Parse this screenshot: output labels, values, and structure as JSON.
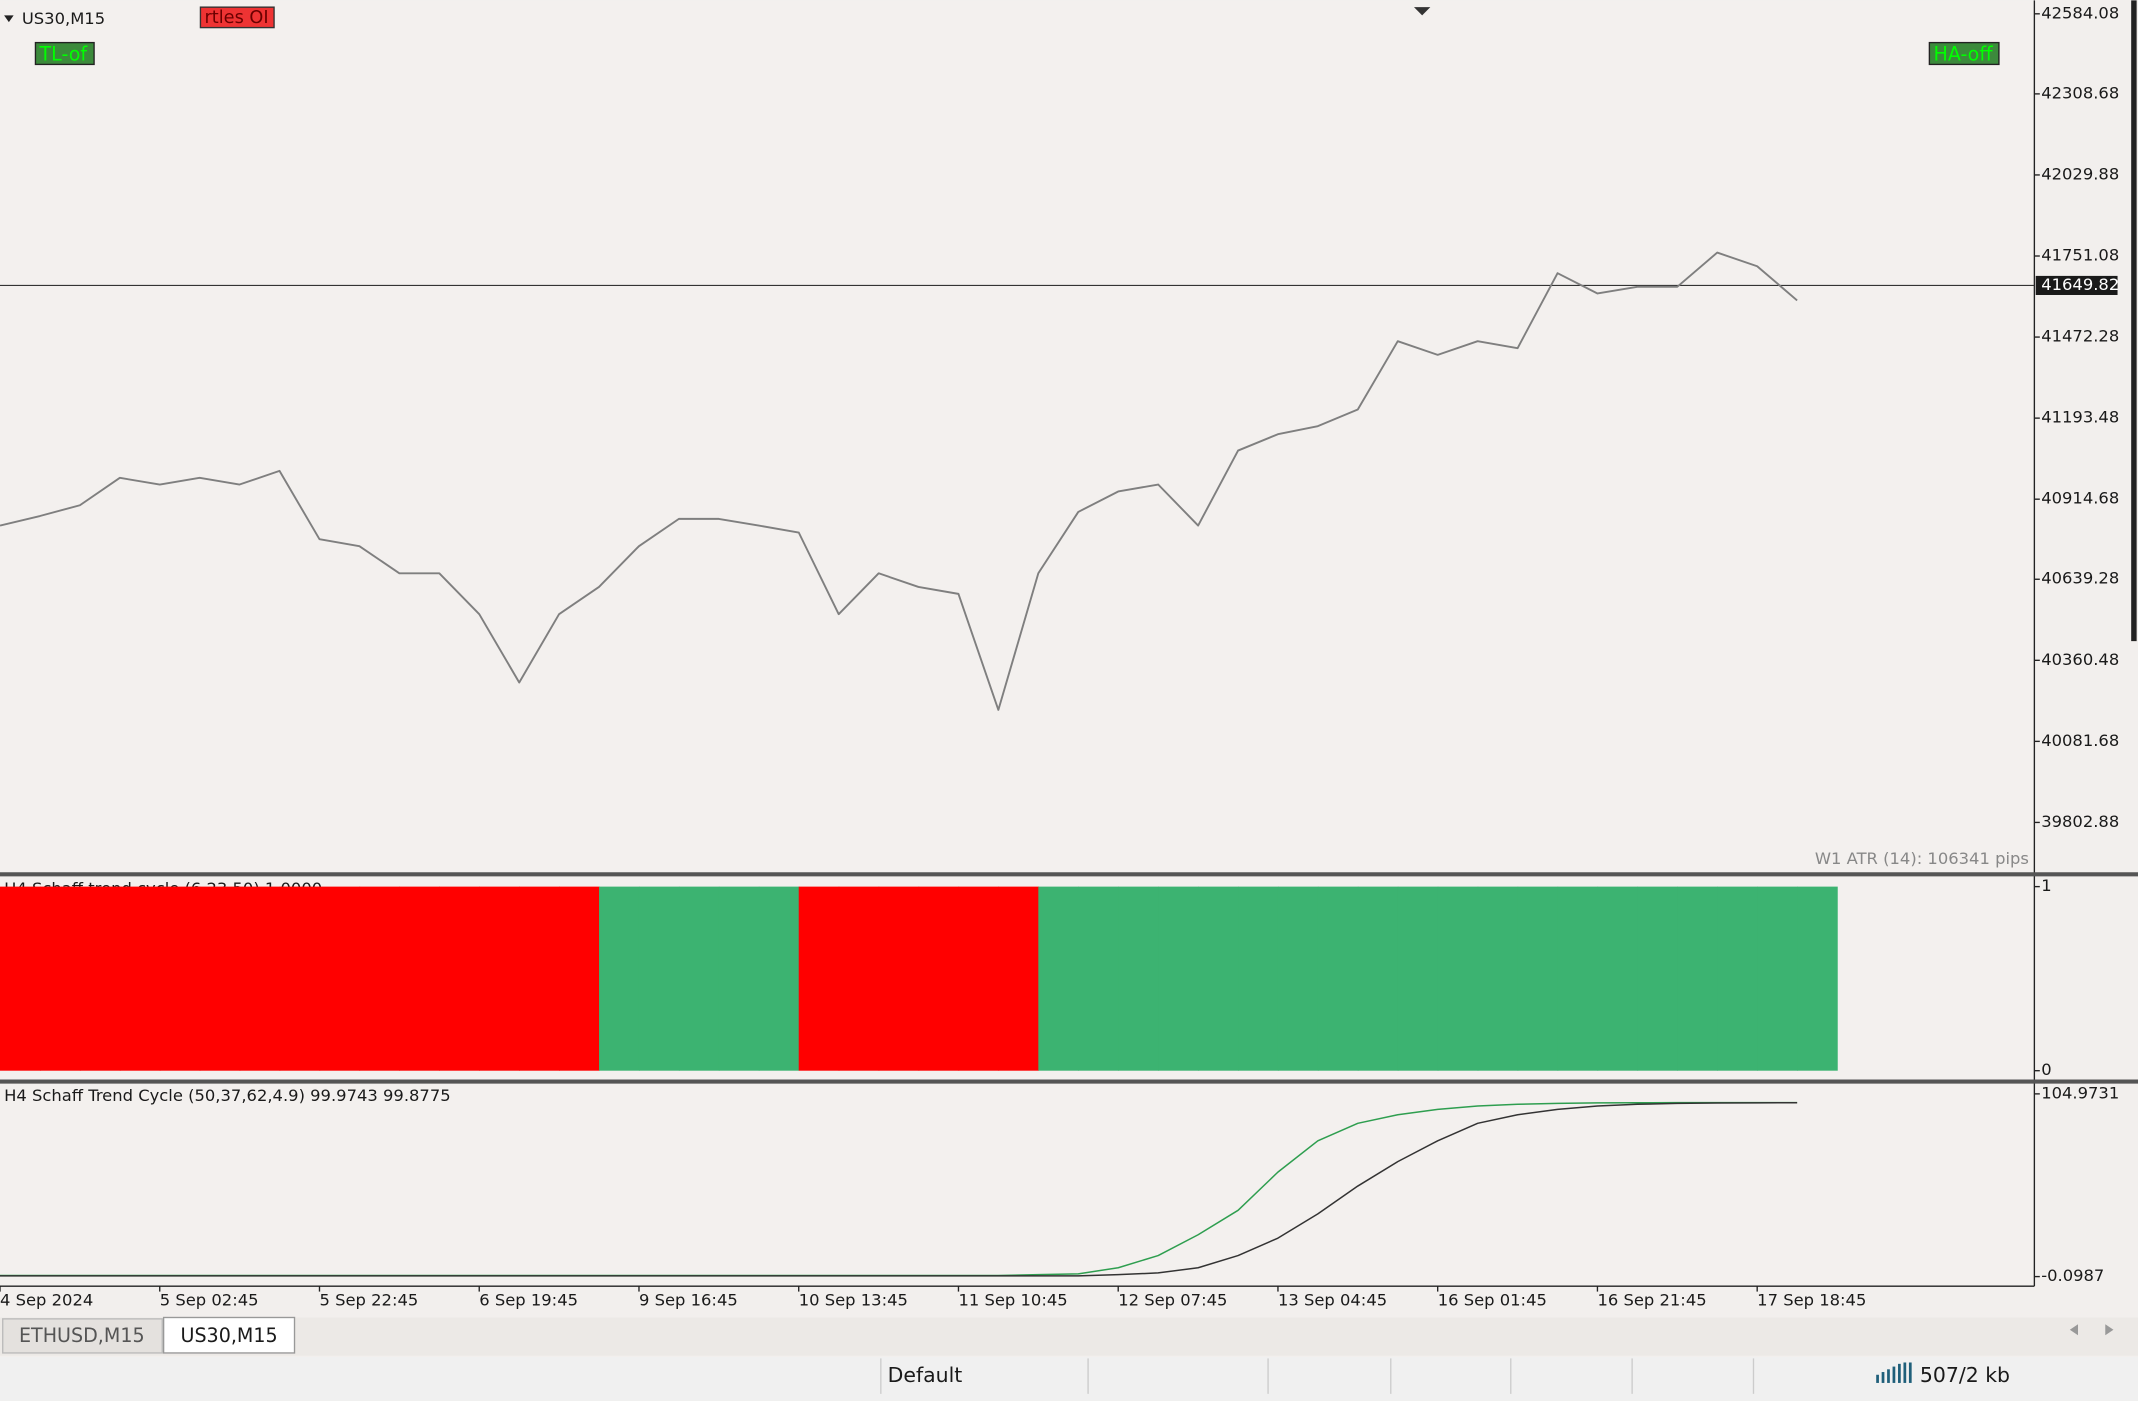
{
  "window": {
    "buttons": [
      "rtles OI",
      "TL-of",
      "HA-off"
    ],
    "tabs": [
      "ETHUSD,M15",
      "US30,M15"
    ],
    "status": [
      "Default",
      "507/2 kb"
    ]
  },
  "chart_data": [
    {
      "type": "line",
      "title": "US30,M15",
      "annotation": "W1 ATR (14): 106341 pips",
      "current_price": 41649.82,
      "categories": [
        "4 Sep 2024",
        null,
        null,
        null,
        "5 Sep 02:45",
        null,
        null,
        null,
        "5 Sep 22:45",
        null,
        null,
        null,
        "6 Sep 19:45",
        null,
        null,
        null,
        "9 Sep 16:45",
        null,
        null,
        null,
        "10 Sep 13:45",
        null,
        null,
        null,
        "11 Sep 10:45",
        null,
        null,
        null,
        "12 Sep 07:45",
        null,
        null,
        null,
        "13 Sep 04:45",
        null,
        null,
        null,
        "16 Sep 01:45",
        null,
        null,
        null,
        "16 Sep 21:45",
        null,
        null,
        null,
        "17 Sep 18:45",
        null
      ],
      "series": [
        {
          "color": "#7f7f7f",
          "values": [
            40824,
            40857,
            40894,
            40988,
            40965,
            40988,
            40965,
            41012,
            40777,
            40753,
            40660,
            40660,
            40519,
            40284,
            40519,
            40613,
            40753,
            40847,
            40847,
            40824,
            40800,
            40519,
            40660,
            40613,
            40589,
            40190,
            40660,
            40871,
            40941,
            40965,
            40824,
            41082,
            41138,
            41166,
            41223,
            41458,
            41411,
            41458,
            41434,
            41692,
            41622,
            41645,
            41645,
            41763,
            41716,
            41598
          ]
        }
      ],
      "ylim": [
        39629,
        42607
      ],
      "yticks": [
        42584.08,
        42308.68,
        42029.88,
        41751.08,
        41472.28,
        41193.48,
        40914.68,
        40639.28,
        40360.48,
        40081.68,
        39802.88
      ]
    },
    {
      "type": "bar",
      "title": "H4 Schaff trend cycle (6,23,50) 1.0000",
      "values": [
        1,
        1,
        1,
        1,
        1,
        1,
        1,
        1,
        1,
        1,
        1,
        1,
        1,
        1,
        1,
        1,
        1,
        1,
        1,
        1,
        1,
        1,
        1,
        1,
        1,
        1,
        1,
        1,
        1,
        1,
        1,
        1,
        1,
        1,
        1,
        1,
        1,
        1,
        1,
        1,
        1,
        1,
        1,
        1,
        1,
        1
      ],
      "colors": [
        "#ff0000",
        "#ff0000",
        "#ff0000",
        "#ff0000",
        "#ff0000",
        "#ff0000",
        "#ff0000",
        "#ff0000",
        "#ff0000",
        "#ff0000",
        "#ff0000",
        "#ff0000",
        "#ff0000",
        "#ff0000",
        "#ff0000",
        "#3cb371",
        "#3cb371",
        "#3cb371",
        "#3cb371",
        "#3cb371",
        "#ff0000",
        "#ff0000",
        "#ff0000",
        "#ff0000",
        "#ff0000",
        "#ff0000",
        "#3cb371",
        "#3cb371",
        "#3cb371",
        "#3cb371",
        "#3cb371",
        "#3cb371",
        "#3cb371",
        "#3cb371",
        "#3cb371",
        "#3cb371",
        "#3cb371",
        "#3cb371",
        "#3cb371",
        "#3cb371",
        "#3cb371",
        "#3cb371",
        "#3cb371",
        "#3cb371",
        "#3cb371",
        "#3cb371"
      ],
      "ylim": [
        0,
        1
      ],
      "yticks": [
        1,
        0
      ]
    },
    {
      "type": "line",
      "title": "H4 Schaff Trend Cycle (50,37,62,4.9) 99.9743 99.8775",
      "series": [
        {
          "color": "#2e9e4f",
          "values": [
            0.5,
            0.5,
            0.5,
            0.5,
            0.5,
            0.5,
            0.5,
            0.5,
            0.5,
            0.5,
            0.5,
            0.5,
            0.5,
            0.5,
            0.5,
            0.5,
            0.5,
            0.5,
            0.5,
            0.5,
            0.5,
            0.5,
            0.5,
            0.5,
            0.5,
            0.5,
            1,
            1.5,
            5,
            12,
            24,
            38,
            60,
            78,
            88,
            93,
            96,
            98,
            99,
            99.5,
            99.8,
            99.9,
            99.95,
            99.96,
            99.97,
            99.9743
          ]
        },
        {
          "color": "#333333",
          "values": [
            0.3,
            0.3,
            0.3,
            0.3,
            0.3,
            0.3,
            0.3,
            0.3,
            0.3,
            0.3,
            0.3,
            0.3,
            0.3,
            0.3,
            0.3,
            0.3,
            0.3,
            0.3,
            0.3,
            0.3,
            0.3,
            0.3,
            0.3,
            0.3,
            0.3,
            0.3,
            0.3,
            0.3,
            1,
            2,
            5,
            12,
            22,
            36,
            52,
            66,
            78,
            88,
            93,
            96,
            98,
            99,
            99.5,
            99.7,
            99.8,
            99.8775
          ]
        }
      ],
      "ylim": [
        -0.0987,
        104.9731
      ],
      "yticks": [
        104.9731,
        -0.0987
      ]
    }
  ]
}
